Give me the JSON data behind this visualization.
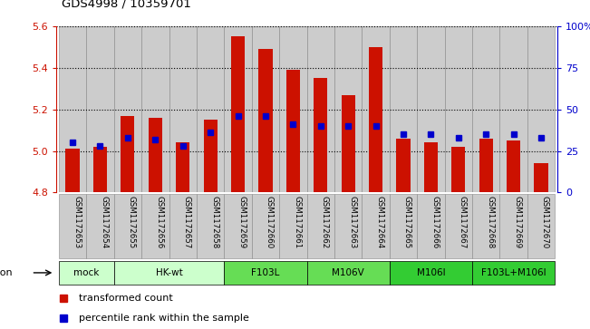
{
  "title": "GDS4998 / 10359701",
  "samples": [
    "GSM1172653",
    "GSM1172654",
    "GSM1172655",
    "GSM1172656",
    "GSM1172657",
    "GSM1172658",
    "GSM1172659",
    "GSM1172660",
    "GSM1172661",
    "GSM1172662",
    "GSM1172663",
    "GSM1172664",
    "GSM1172665",
    "GSM1172666",
    "GSM1172667",
    "GSM1172668",
    "GSM1172669",
    "GSM1172670"
  ],
  "bar_values": [
    5.01,
    5.02,
    5.17,
    5.16,
    5.04,
    5.15,
    5.55,
    5.49,
    5.39,
    5.35,
    5.27,
    5.5,
    5.06,
    5.04,
    5.02,
    5.06,
    5.05,
    4.94
  ],
  "percentile_ranks": [
    30,
    28,
    33,
    32,
    28,
    36,
    46,
    46,
    41,
    40,
    40,
    40,
    35,
    35,
    33,
    35,
    35,
    33
  ],
  "y_min": 4.8,
  "y_max": 5.6,
  "bar_color": "#cc1100",
  "dot_color": "#0000cc",
  "groups_def": [
    {
      "label": "mock",
      "indices": [
        0,
        1
      ],
      "color": "#ccffcc"
    },
    {
      "label": "HK-wt",
      "indices": [
        2,
        3,
        4,
        5
      ],
      "color": "#ccffcc"
    },
    {
      "label": "F103L",
      "indices": [
        6,
        7,
        8
      ],
      "color": "#66dd55"
    },
    {
      "label": "M106V",
      "indices": [
        9,
        10,
        11
      ],
      "color": "#66dd55"
    },
    {
      "label": "M106I",
      "indices": [
        12,
        13,
        14
      ],
      "color": "#33cc33"
    },
    {
      "label": "F103L+M106I",
      "indices": [
        15,
        16,
        17
      ],
      "color": "#33cc33"
    }
  ],
  "yticks_left": [
    4.8,
    5.0,
    5.2,
    5.4,
    5.6
  ],
  "yticks_right": [
    0,
    25,
    50,
    75,
    100
  ],
  "legend_items": [
    {
      "label": "transformed count",
      "color": "#cc1100"
    },
    {
      "label": "percentile rank within the sample",
      "color": "#0000cc"
    }
  ],
  "col_bg_color": "#cccccc",
  "col_edge_color": "#888888",
  "chart_bg": "#ffffff"
}
